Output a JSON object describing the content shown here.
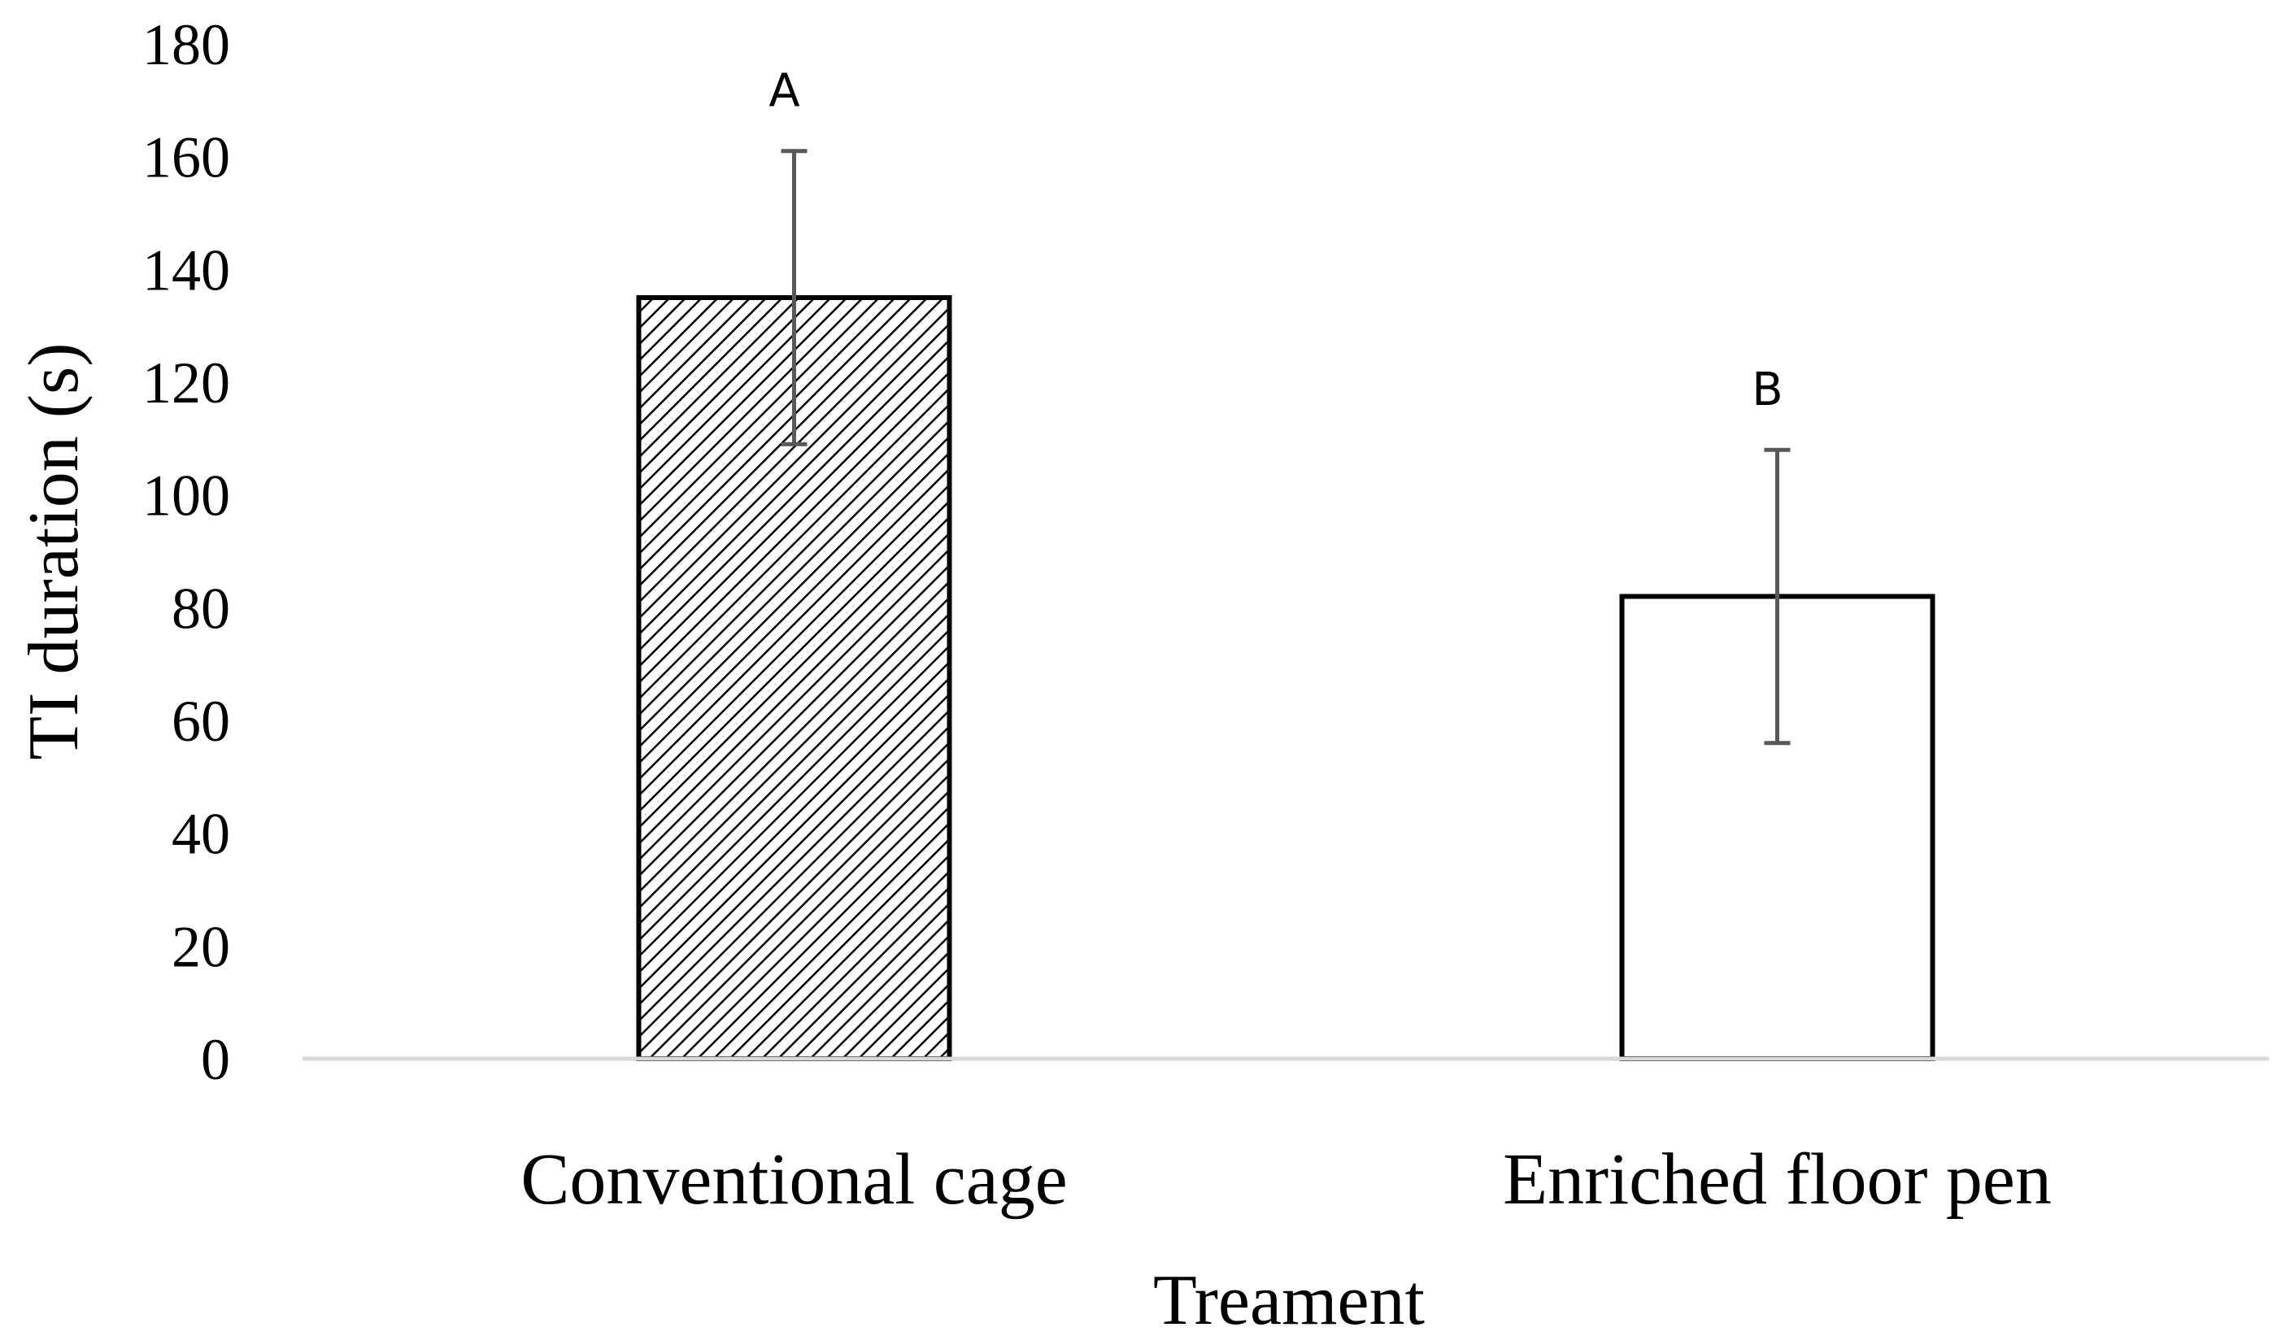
{
  "chart_data": {
    "type": "bar",
    "categories": [
      "Conventional cage",
      "Enriched floor pen"
    ],
    "values": [
      135,
      82
    ],
    "error": [
      26,
      26
    ],
    "significance": [
      "A",
      "B"
    ],
    "patterns": [
      "hatched",
      "solid-white"
    ],
    "title": "",
    "xlabel": "Treament",
    "ylabel": "TI duration (s)",
    "ylim": [
      0,
      180
    ],
    "yticks": [
      0,
      20,
      40,
      60,
      80,
      100,
      120,
      140,
      160,
      180
    ],
    "grid": false,
    "colors": {
      "bar_fill": "#ffffff",
      "bar_stroke": "#000000",
      "hatch": "#000000",
      "error_bar": "#595959",
      "axis": "#d9d9d9"
    }
  }
}
